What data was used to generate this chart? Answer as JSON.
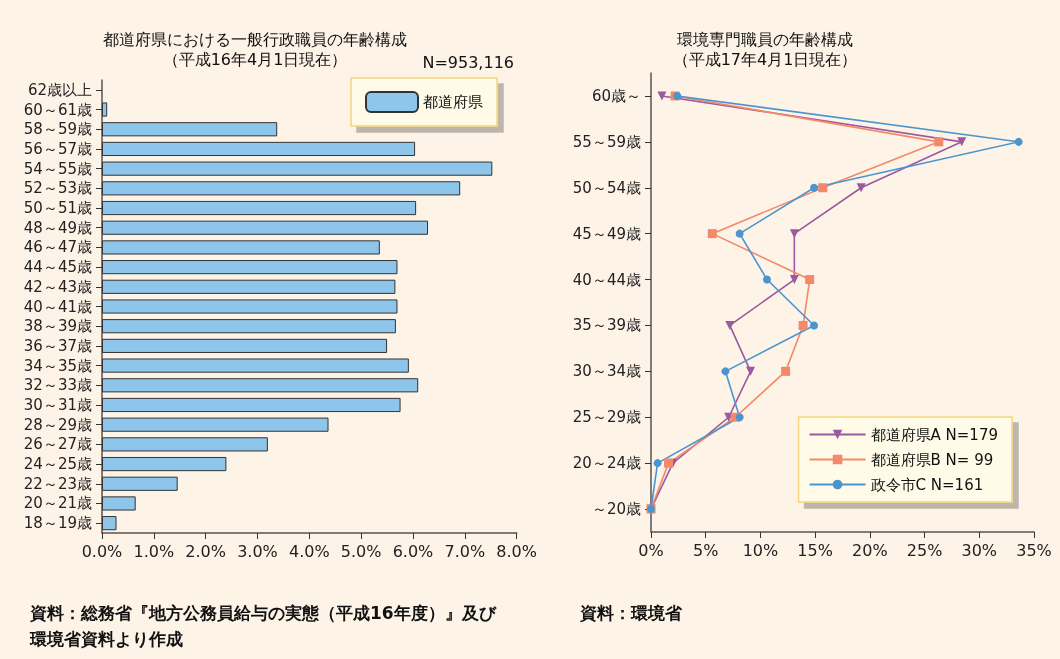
{
  "chart_data": [
    {
      "type": "bar",
      "orientation": "horizontal",
      "title": "都道府県における一般行政職員の年齢構成",
      "subtitle": "（平成16年4月1日現在）",
      "categories": [
        "62歳以上",
        "60～61歳",
        "58～59歳",
        "56～57歳",
        "54～55歳",
        "52～53歳",
        "50～51歳",
        "48～49歳",
        "46～47歳",
        "44～45歳",
        "42～43歳",
        "40～41歳",
        "38～39歳",
        "36～37歳",
        "34～35歳",
        "32～33歳",
        "30～31歳",
        "28～29歳",
        "26～27歳",
        "24～25歳",
        "22～23歳",
        "20～21歳",
        "18～19歳"
      ],
      "series": [
        {
          "name": "都道府県",
          "color": "#8ec5ea",
          "values": [
            null,
            0.1,
            3.38,
            6.04,
            7.53,
            6.91,
            6.06,
            6.29,
            5.36,
            5.7,
            5.66,
            5.7,
            5.67,
            5.5,
            5.92,
            6.1,
            5.76,
            4.37,
            3.2,
            2.4,
            1.46,
            0.65,
            0.28
          ]
        }
      ],
      "xlim": [
        0,
        8
      ],
      "xticks": [
        {
          "value": 0,
          "label": "0.0%"
        },
        {
          "value": 1,
          "label": "1.0%"
        },
        {
          "value": 2,
          "label": "2.0%"
        },
        {
          "value": 3,
          "label": "3.0%"
        },
        {
          "value": 4,
          "label": "4.0%"
        },
        {
          "value": 5,
          "label": "5.0%"
        },
        {
          "value": 6,
          "label": "6.0%"
        },
        {
          "value": 7,
          "label": "7.0%"
        },
        {
          "value": 8,
          "label": "8.0%"
        }
      ],
      "legend": "top right",
      "grid": false,
      "annotations": [
        "N=953,116",
        "資料：総務省『地方公務員給与の実態（平成16年度）』及び環境省資料より作成"
      ]
    },
    {
      "type": "line",
      "orientation": "horizontal",
      "title": "環境専門職員の年齢構成",
      "subtitle": "（平成17年4月1日現在）",
      "categories": [
        "60歳～",
        "55～59歳",
        "50～54歳",
        "45～49歳",
        "40～44歳",
        "35～39歳",
        "30～34歳",
        "25～29歳",
        "20～24歳",
        "～20歳"
      ],
      "series": [
        {
          "name": "都道府県A N=179",
          "color": "#9b59a0",
          "marker": "triangle",
          "values": [
            1.0,
            28.4,
            19.2,
            13.1,
            13.1,
            7.2,
            9.1,
            7.1,
            2.0,
            0
          ]
        },
        {
          "name": "都道府県B N= 99",
          "color": "#f4896a",
          "marker": "square",
          "values": [
            2.2,
            26.3,
            15.7,
            5.6,
            14.5,
            13.9,
            12.3,
            7.7,
            1.6,
            0
          ]
        },
        {
          "name": "政令市C N=161",
          "color": "#4a95cf",
          "marker": "circle",
          "values": [
            2.4,
            33.6,
            14.9,
            8.1,
            10.6,
            14.9,
            6.8,
            8.1,
            0.6,
            0
          ]
        }
      ],
      "xlim": [
        0,
        35
      ],
      "xticks": [
        {
          "value": 0,
          "label": "0%"
        },
        {
          "value": 5,
          "label": "5%"
        },
        {
          "value": 10,
          "label": "10%"
        },
        {
          "value": 15,
          "label": "15%"
        },
        {
          "value": 20,
          "label": "20%"
        },
        {
          "value": 25,
          "label": "25%"
        },
        {
          "value": 30,
          "label": "30%"
        },
        {
          "value": 35,
          "label": "35%"
        }
      ],
      "legend": "bottom right",
      "grid": false,
      "line_style": "solid",
      "annotations": [
        "資料：環境省"
      ]
    }
  ]
}
